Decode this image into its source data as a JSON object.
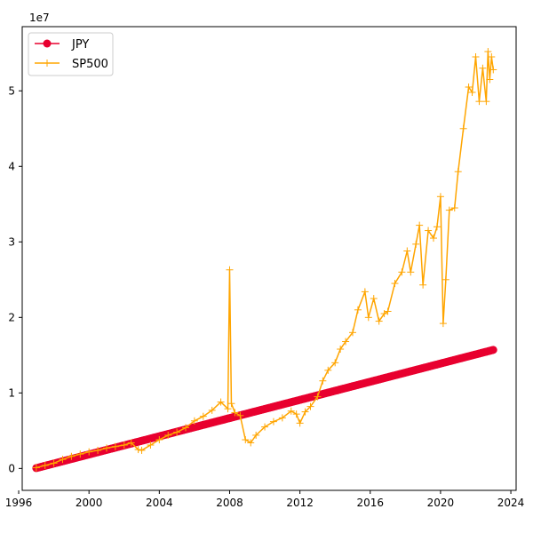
{
  "chart_data": {
    "type": "line",
    "title": "",
    "xlabel": "",
    "ylabel": "",
    "y_offset_label": "1e7",
    "xlim": [
      1996.2,
      2024.3
    ],
    "ylim": [
      -0.29,
      5.85
    ],
    "x_ticks": [
      1996,
      2000,
      2004,
      2008,
      2012,
      2016,
      2020,
      2024
    ],
    "x_tick_labels": [
      "1996",
      "2000",
      "2004",
      "2008",
      "2012",
      "2016",
      "2020",
      "2024"
    ],
    "y_ticks": [
      0,
      1,
      2,
      3,
      4,
      5
    ],
    "y_tick_labels": [
      "0",
      "1",
      "2",
      "3",
      "4",
      "5"
    ],
    "y_units_note": "values in units of 1e7",
    "grid": false,
    "legend_position": "upper-left",
    "series": [
      {
        "name": "JPY",
        "color": "#e8002f",
        "marker": "circle",
        "linear": {
          "x_start": 1997.0,
          "y_start": 0.005,
          "x_end": 2023.0,
          "y_end": 1.57,
          "step": 0.08333
        }
      },
      {
        "name": "SP500",
        "color": "#ffa500",
        "marker": "plus",
        "points": [
          [
            1997.0,
            0.01
          ],
          [
            1997.5,
            0.04
          ],
          [
            1998.0,
            0.07
          ],
          [
            1998.5,
            0.12
          ],
          [
            1999.0,
            0.16
          ],
          [
            1999.5,
            0.19
          ],
          [
            2000.0,
            0.22
          ],
          [
            2000.5,
            0.24
          ],
          [
            2001.0,
            0.27
          ],
          [
            2001.5,
            0.29
          ],
          [
            2002.0,
            0.31
          ],
          [
            2002.4,
            0.34
          ],
          [
            2002.8,
            0.25
          ],
          [
            2003.0,
            0.24
          ],
          [
            2003.5,
            0.31
          ],
          [
            2004.0,
            0.38
          ],
          [
            2004.5,
            0.44
          ],
          [
            2005.0,
            0.48
          ],
          [
            2005.5,
            0.54
          ],
          [
            2006.0,
            0.63
          ],
          [
            2006.5,
            0.69
          ],
          [
            2007.0,
            0.77
          ],
          [
            2007.5,
            0.88
          ],
          [
            2007.9,
            0.79
          ],
          [
            2008.0,
            2.63
          ],
          [
            2008.1,
            0.86
          ],
          [
            2008.3,
            0.74
          ],
          [
            2008.6,
            0.7
          ],
          [
            2008.9,
            0.38
          ],
          [
            2009.2,
            0.34
          ],
          [
            2009.5,
            0.44
          ],
          [
            2010.0,
            0.55
          ],
          [
            2010.5,
            0.62
          ],
          [
            2011.0,
            0.67
          ],
          [
            2011.5,
            0.76
          ],
          [
            2011.8,
            0.72
          ],
          [
            2012.0,
            0.6
          ],
          [
            2012.3,
            0.75
          ],
          [
            2012.6,
            0.82
          ],
          [
            2013.0,
            0.95
          ],
          [
            2013.3,
            1.16
          ],
          [
            2013.6,
            1.3
          ],
          [
            2014.0,
            1.4
          ],
          [
            2014.3,
            1.58
          ],
          [
            2014.6,
            1.68
          ],
          [
            2015.0,
            1.8
          ],
          [
            2015.3,
            2.1
          ],
          [
            2015.7,
            2.34
          ],
          [
            2015.9,
            2.0
          ],
          [
            2016.2,
            2.25
          ],
          [
            2016.5,
            1.95
          ],
          [
            2016.8,
            2.05
          ],
          [
            2017.0,
            2.08
          ],
          [
            2017.4,
            2.45
          ],
          [
            2017.8,
            2.6
          ],
          [
            2018.1,
            2.88
          ],
          [
            2018.3,
            2.6
          ],
          [
            2018.6,
            2.97
          ],
          [
            2018.8,
            3.22
          ],
          [
            2019.0,
            2.43
          ],
          [
            2019.3,
            3.15
          ],
          [
            2019.6,
            3.05
          ],
          [
            2019.8,
            3.2
          ],
          [
            2020.0,
            3.6
          ],
          [
            2020.15,
            1.92
          ],
          [
            2020.3,
            2.5
          ],
          [
            2020.5,
            3.42
          ],
          [
            2020.8,
            3.45
          ],
          [
            2021.0,
            3.93
          ],
          [
            2021.3,
            4.5
          ],
          [
            2021.6,
            5.05
          ],
          [
            2021.8,
            4.98
          ],
          [
            2022.0,
            5.45
          ],
          [
            2022.2,
            4.86
          ],
          [
            2022.4,
            5.3
          ],
          [
            2022.6,
            4.86
          ],
          [
            2022.7,
            5.52
          ],
          [
            2022.8,
            5.15
          ],
          [
            2022.9,
            5.45
          ],
          [
            2023.0,
            5.28
          ]
        ]
      }
    ]
  }
}
